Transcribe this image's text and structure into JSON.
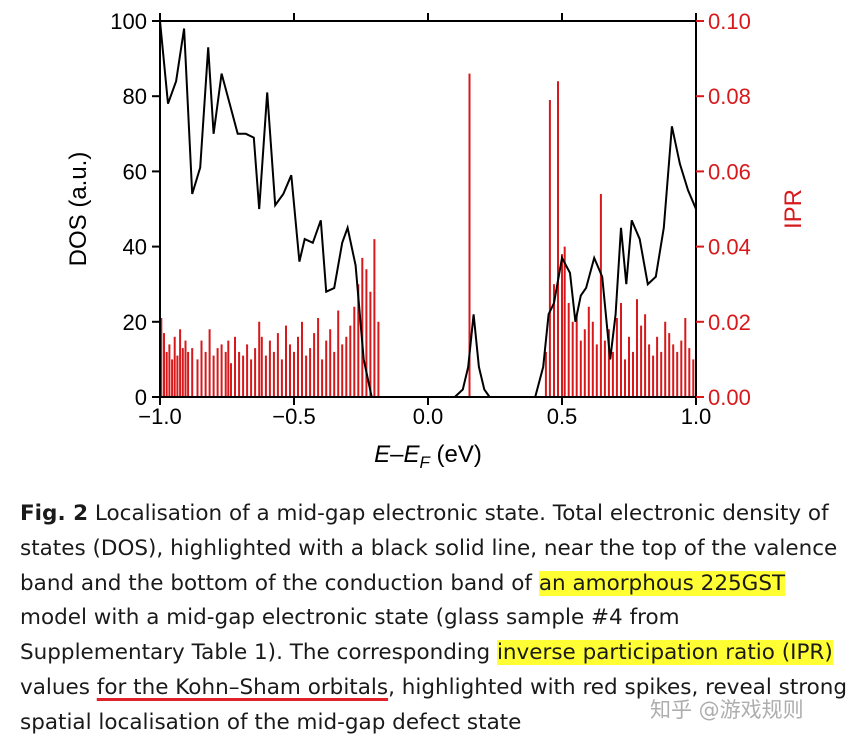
{
  "chart_data": {
    "type": "line+spikes",
    "xlabel_main": "E",
    "xlabel_sep": "–",
    "xlabel_sub_base": "E",
    "xlabel_sub": "F",
    "xlabel_unit": " (eV)",
    "ylabel_left": "DOS (a.u.)",
    "ylabel_right": "IPR",
    "xlim": [
      -1.0,
      1.0
    ],
    "ylim_left": [
      0,
      100
    ],
    "ylim_right": [
      0.0,
      0.1
    ],
    "xticks": [
      "−1.0",
      "−0.5",
      "0.0",
      "0.5",
      "1.0"
    ],
    "xtick_values": [
      -1.0,
      -0.5,
      0.0,
      0.5,
      1.0
    ],
    "yticks_left": [
      "0",
      "20",
      "40",
      "60",
      "80",
      "100"
    ],
    "ytick_values_left": [
      0,
      20,
      40,
      60,
      80,
      100
    ],
    "yticks_right": [
      "0.00",
      "0.02",
      "0.04",
      "0.06",
      "0.08",
      "0.10"
    ],
    "ytick_values_right": [
      0.0,
      0.02,
      0.04,
      0.06,
      0.08,
      0.1
    ],
    "dos_color": "#000000",
    "ipr_color": "#d7191c",
    "dos_series": {
      "name": "DOS",
      "x": [
        -1.0,
        -0.97,
        -0.94,
        -0.91,
        -0.88,
        -0.85,
        -0.82,
        -0.8,
        -0.77,
        -0.74,
        -0.71,
        -0.68,
        -0.65,
        -0.63,
        -0.6,
        -0.57,
        -0.54,
        -0.51,
        -0.48,
        -0.46,
        -0.43,
        -0.4,
        -0.38,
        -0.35,
        -0.32,
        -0.3,
        -0.27,
        -0.24,
        -0.21,
        -0.18,
        -0.15,
        -0.12,
        -0.1,
        0.0,
        0.1,
        0.13,
        0.15,
        0.17,
        0.19,
        0.21,
        0.23,
        0.3,
        0.4,
        0.43,
        0.45,
        0.47,
        0.5,
        0.53,
        0.55,
        0.57,
        0.59,
        0.62,
        0.65,
        0.68,
        0.7,
        0.72,
        0.74,
        0.76,
        0.79,
        0.82,
        0.85,
        0.88,
        0.91,
        0.94,
        0.97,
        1.0
      ],
      "values": [
        100,
        78,
        84,
        98,
        54,
        61,
        93,
        70,
        86,
        78,
        70,
        70,
        69,
        50,
        81,
        51,
        54,
        59,
        36,
        42,
        41,
        47,
        28,
        29,
        41,
        45,
        35,
        10,
        0,
        0,
        0,
        0,
        0,
        0,
        0,
        2,
        8,
        22,
        8,
        2,
        0,
        0,
        0,
        8,
        22,
        25,
        37,
        33,
        20,
        27,
        29,
        37,
        32,
        10,
        22,
        45,
        30,
        47,
        42,
        30,
        32,
        45,
        72,
        62,
        55,
        50
      ]
    },
    "ipr_series": {
      "name": "IPR",
      "x": [
        -0.995,
        -0.985,
        -0.975,
        -0.965,
        -0.955,
        -0.945,
        -0.935,
        -0.925,
        -0.915,
        -0.905,
        -0.895,
        -0.88,
        -0.86,
        -0.845,
        -0.83,
        -0.815,
        -0.8,
        -0.785,
        -0.77,
        -0.755,
        -0.745,
        -0.735,
        -0.72,
        -0.705,
        -0.69,
        -0.675,
        -0.66,
        -0.645,
        -0.63,
        -0.62,
        -0.605,
        -0.59,
        -0.575,
        -0.56,
        -0.545,
        -0.53,
        -0.515,
        -0.5,
        -0.485,
        -0.47,
        -0.455,
        -0.44,
        -0.425,
        -0.41,
        -0.395,
        -0.38,
        -0.365,
        -0.35,
        -0.335,
        -0.32,
        -0.305,
        -0.29,
        -0.275,
        -0.26,
        -0.245,
        -0.23,
        -0.215,
        -0.2,
        -0.185,
        0.155,
        0.44,
        0.455,
        0.47,
        0.485,
        0.5,
        0.51,
        0.525,
        0.54,
        0.555,
        0.57,
        0.585,
        0.6,
        0.615,
        0.63,
        0.645,
        0.66,
        0.675,
        0.69,
        0.705,
        0.72,
        0.735,
        0.75,
        0.765,
        0.78,
        0.795,
        0.81,
        0.825,
        0.84,
        0.855,
        0.87,
        0.885,
        0.9,
        0.915,
        0.93,
        0.945,
        0.96,
        0.975,
        0.99
      ],
      "values": [
        0.021,
        0.017,
        0.012,
        0.014,
        0.01,
        0.016,
        0.011,
        0.018,
        0.013,
        0.015,
        0.012,
        0.013,
        0.01,
        0.015,
        0.012,
        0.018,
        0.011,
        0.013,
        0.014,
        0.012,
        0.015,
        0.009,
        0.016,
        0.012,
        0.011,
        0.014,
        0.01,
        0.013,
        0.02,
        0.016,
        0.011,
        0.015,
        0.012,
        0.017,
        0.01,
        0.019,
        0.014,
        0.012,
        0.016,
        0.02,
        0.011,
        0.013,
        0.017,
        0.021,
        0.01,
        0.015,
        0.018,
        0.012,
        0.023,
        0.014,
        0.016,
        0.019,
        0.024,
        0.03,
        0.037,
        0.034,
        0.028,
        0.042,
        0.02,
        0.086,
        0.012,
        0.079,
        0.03,
        0.084,
        0.038,
        0.04,
        0.025,
        0.02,
        0.022,
        0.015,
        0.018,
        0.024,
        0.02,
        0.014,
        0.054,
        0.015,
        0.018,
        0.012,
        0.021,
        0.025,
        0.01,
        0.016,
        0.012,
        0.026,
        0.019,
        0.022,
        0.014,
        0.011,
        0.016,
        0.012,
        0.02,
        0.017,
        0.014,
        0.012,
        0.015,
        0.021,
        0.013,
        0.01
      ]
    }
  },
  "caption": {
    "fig_label": "Fig. 2",
    "part1": " Localisation of a mid-gap electronic state. Total electronic density of states (DOS), highlighted with a black solid line, near the top of the valence band and the bottom of the conduction band of ",
    "hl1": "an amorphous 225GST",
    "part2": " model with a mid-gap electronic state (glass sample #4 from Supplementary Table 1). The corresponding ",
    "hl2": "inverse participation ratio (IPR)",
    "part3": " values ",
    "ul1": "for the Kohn–Sham orbitals",
    "part4": ", highlighted with red spikes, reveal strong spatial localisation of the mid-gap defect state"
  },
  "watermark": "知乎 @游戏规则"
}
